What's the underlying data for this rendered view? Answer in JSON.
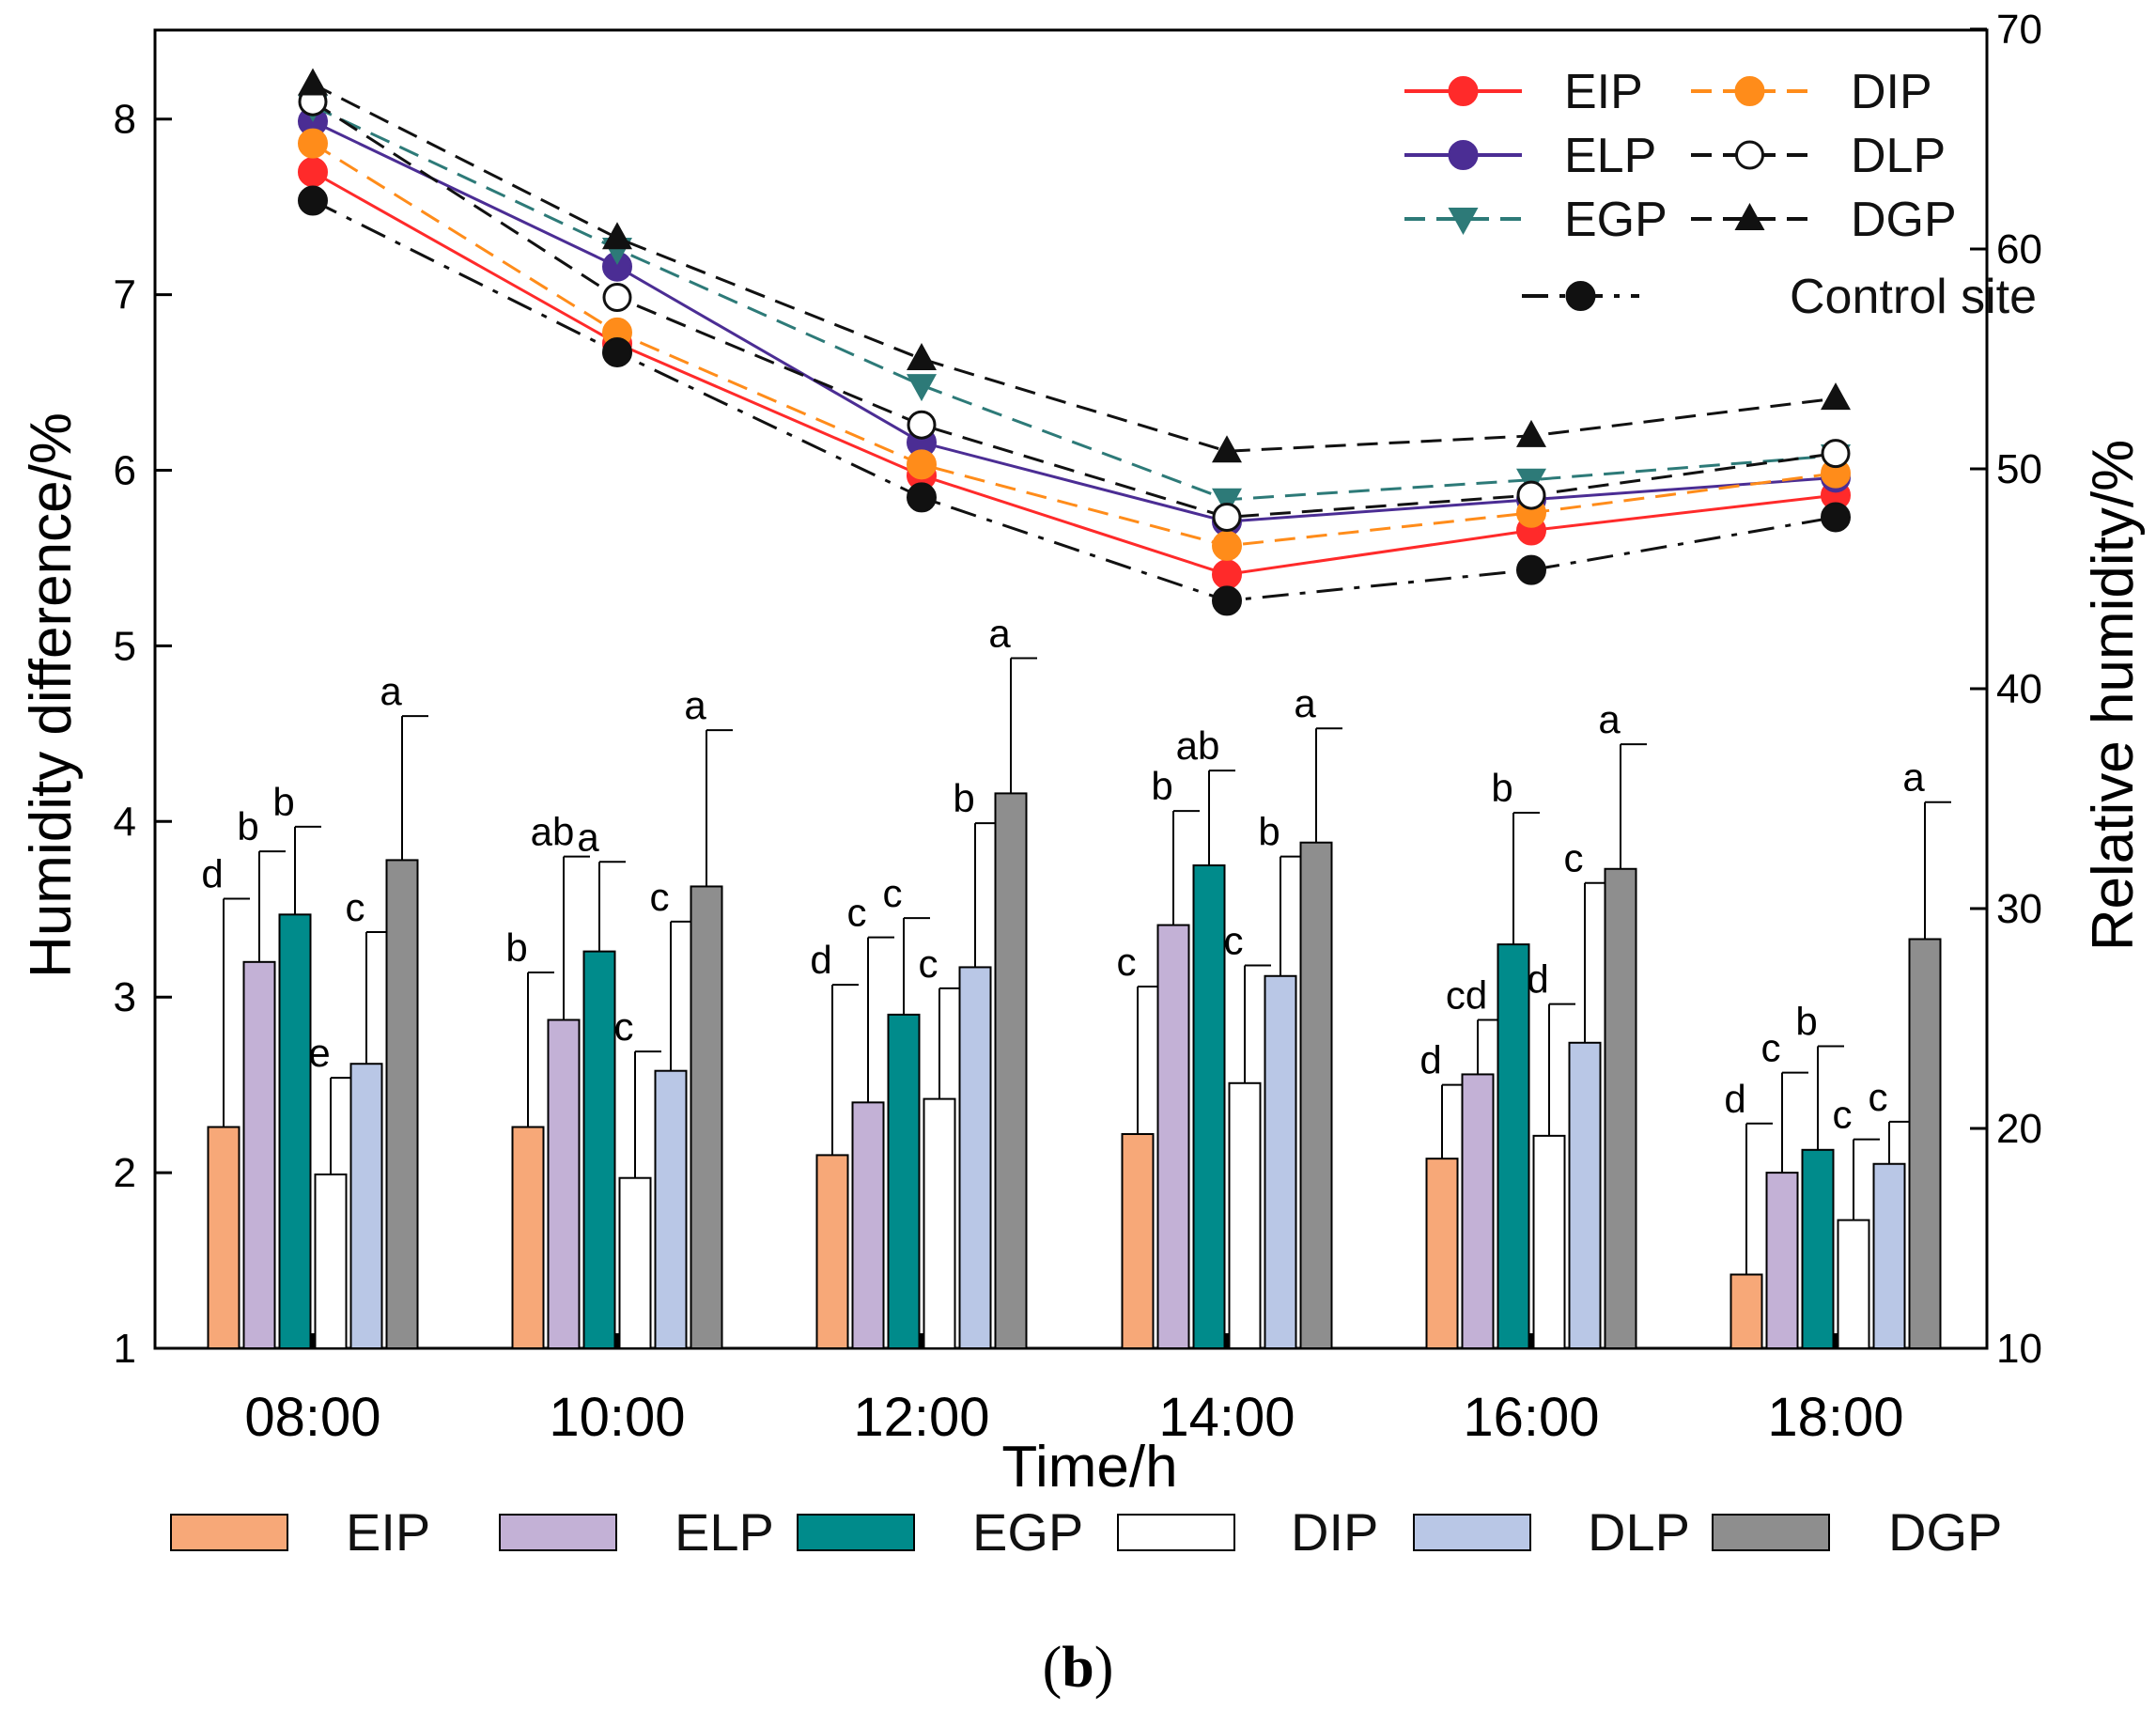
{
  "chart_data": {
    "type": "bar+line",
    "categories": [
      "08:00",
      "10:00",
      "12:00",
      "14:00",
      "16:00",
      "18:00"
    ],
    "xlabel": "Time/h",
    "ylabel_left": "Humidity difference/%",
    "ylabel_right": "Relative humidity/%",
    "ylim_left": [
      1,
      8.5
    ],
    "ylim_right": [
      10,
      70
    ],
    "yticks_left": [
      "1",
      "2",
      "3",
      "4",
      "5",
      "6",
      "7",
      "8"
    ],
    "yticks_right": [
      "10",
      "20",
      "30",
      "40",
      "50",
      "60",
      "70"
    ],
    "bar_series": [
      {
        "name": "EIP",
        "color": "#f7a878",
        "values": [
          2.26,
          2.26,
          2.1,
          2.22,
          2.08,
          1.42
        ],
        "errors": [
          1.3,
          0.88,
          0.97,
          0.84,
          0.42,
          0.86
        ],
        "letters": [
          "d",
          "b",
          "d",
          "c",
          "d",
          "d"
        ]
      },
      {
        "name": "ELP",
        "color": "#c3b1d6",
        "values": [
          3.2,
          2.87,
          2.4,
          3.41,
          2.56,
          2.0
        ],
        "errors": [
          0.63,
          0.93,
          0.94,
          0.65,
          0.31,
          0.57
        ],
        "letters": [
          "b",
          "ab",
          "c",
          "b",
          "cd",
          "c"
        ]
      },
      {
        "name": "EGP",
        "color": "#008b8b",
        "values": [
          3.47,
          3.26,
          2.9,
          3.75,
          3.3,
          2.13
        ],
        "errors": [
          0.5,
          0.51,
          0.55,
          0.54,
          0.75,
          0.59
        ],
        "letters": [
          "b",
          "a",
          "c",
          "ab",
          "b",
          "b"
        ]
      },
      {
        "name": "DIP",
        "color": "#ffffff",
        "values": [
          1.99,
          1.97,
          2.42,
          2.51,
          2.21,
          1.73
        ],
        "errors": [
          0.55,
          0.72,
          0.63,
          0.67,
          0.75,
          0.46
        ],
        "letters": [
          "e",
          "c",
          "c",
          "c",
          "d",
          "c"
        ]
      },
      {
        "name": "DLP",
        "color": "#b9c7e6",
        "values": [
          2.62,
          2.58,
          3.17,
          3.12,
          2.74,
          2.05
        ],
        "errors": [
          0.75,
          0.85,
          0.82,
          0.68,
          0.91,
          0.24
        ],
        "letters": [
          "c",
          "c",
          "b",
          "b",
          "c",
          "c"
        ]
      },
      {
        "name": "DGP",
        "color": "#8e8e8e",
        "values": [
          3.78,
          3.63,
          4.16,
          3.88,
          3.73,
          3.33
        ],
        "errors": [
          0.82,
          0.89,
          0.77,
          0.65,
          0.71,
          0.78
        ],
        "letters": [
          "a",
          "a",
          "a",
          "a",
          "a",
          "a"
        ]
      }
    ],
    "line_series": [
      {
        "name": "EIP",
        "color": "#ff2a2a",
        "dash": "solid",
        "marker": "circle",
        "values": [
          63.5,
          55.7,
          49.7,
          45.2,
          47.2,
          48.8
        ]
      },
      {
        "name": "ELP",
        "color": "#4b2d94",
        "dash": "solid",
        "marker": "circle",
        "values": [
          65.8,
          59.2,
          51.2,
          47.6,
          48.6,
          49.6
        ]
      },
      {
        "name": "EGP",
        "color": "#2d7a78",
        "dash": "dashed",
        "marker": "triangle-down",
        "values": [
          66.5,
          60.0,
          53.8,
          48.6,
          49.5,
          50.6
        ]
      },
      {
        "name": "DIP",
        "color": "#ff8c1a",
        "dash": "dashed",
        "marker": "circle",
        "values": [
          64.8,
          56.2,
          50.2,
          46.5,
          48.0,
          49.8
        ]
      },
      {
        "name": "DLP",
        "color": "#111111",
        "dash": "dashed",
        "marker": "open-circle",
        "values": [
          66.7,
          57.8,
          52.0,
          47.8,
          48.8,
          50.7
        ]
      },
      {
        "name": "DGP",
        "color": "#111111",
        "dash": "dashed",
        "marker": "triangle-up",
        "values": [
          67.5,
          60.5,
          55.0,
          50.8,
          51.5,
          53.2
        ]
      },
      {
        "name": "Control site",
        "color": "#111111",
        "dash": "dash-dot",
        "marker": "circle",
        "values": [
          62.2,
          55.3,
          48.7,
          44.0,
          45.4,
          47.8
        ]
      }
    ],
    "line_legend_position": "top-right",
    "bar_legend_position": "bottom"
  },
  "caption": {
    "open": "(",
    "letter": "b",
    "close": ")"
  }
}
